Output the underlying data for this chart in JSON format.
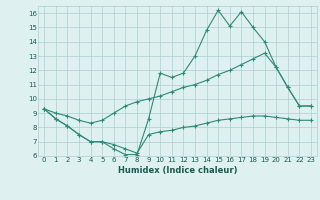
{
  "xlabel": "Humidex (Indice chaleur)",
  "x": [
    0,
    1,
    2,
    3,
    4,
    5,
    6,
    7,
    8,
    9,
    10,
    11,
    12,
    13,
    14,
    15,
    16,
    17,
    18,
    19,
    20,
    21,
    22,
    23
  ],
  "line1": [
    9.3,
    8.6,
    8.1,
    7.5,
    7.0,
    7.0,
    6.5,
    6.1,
    6.1,
    8.6,
    11.8,
    11.5,
    11.8,
    13.0,
    14.8,
    16.2,
    15.1,
    16.1,
    15.0,
    14.0,
    12.2,
    10.8,
    9.5,
    9.5
  ],
  "line2": [
    9.3,
    8.6,
    8.1,
    7.5,
    7.0,
    7.0,
    6.8,
    6.5,
    6.2,
    7.5,
    7.7,
    7.8,
    8.0,
    8.1,
    8.3,
    8.5,
    8.6,
    8.7,
    8.8,
    8.8,
    8.7,
    8.6,
    8.5,
    8.5
  ],
  "line3": [
    9.3,
    9.0,
    8.8,
    8.5,
    8.3,
    8.5,
    9.0,
    9.5,
    9.8,
    10.0,
    10.2,
    10.5,
    10.8,
    11.0,
    11.3,
    11.7,
    12.0,
    12.4,
    12.8,
    13.2,
    12.2,
    10.8,
    9.5,
    9.5
  ],
  "color": "#2e8b74",
  "background": "#dff0f0",
  "grid_color": "#aacfcf",
  "ylim": [
    6,
    16.5
  ],
  "xlim": [
    -0.5,
    23.5
  ],
  "yticks": [
    6,
    7,
    8,
    9,
    10,
    11,
    12,
    13,
    14,
    15,
    16
  ],
  "xticks": [
    0,
    1,
    2,
    3,
    4,
    5,
    6,
    7,
    8,
    9,
    10,
    11,
    12,
    13,
    14,
    15,
    16,
    17,
    18,
    19,
    20,
    21,
    22,
    23
  ],
  "tick_fontsize": 5,
  "xlabel_fontsize": 6
}
